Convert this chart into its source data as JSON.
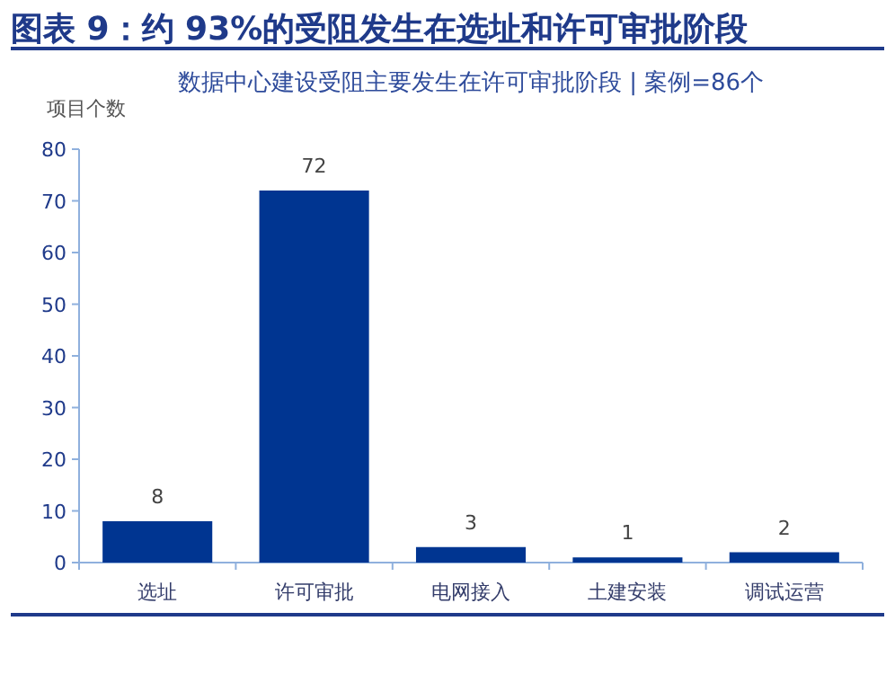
{
  "chart_data": {
    "type": "bar",
    "title": "图表 9：约 93%的受阻发生在选址和许可审批阶段",
    "subtitle": "数据中心建设受阻主要发生在许可审批阶段 | 案例=86个",
    "ylabel": "项目个数",
    "categories": [
      "选址",
      "许可审批",
      "电网接入",
      "土建安装",
      "调试运营"
    ],
    "values": [
      8,
      72,
      3,
      1,
      2
    ],
    "color": "#003591",
    "ylim": [
      0,
      80
    ],
    "yticks": [
      0,
      10,
      20,
      30,
      40,
      50,
      60,
      70,
      80
    ],
    "data_labels": true
  }
}
